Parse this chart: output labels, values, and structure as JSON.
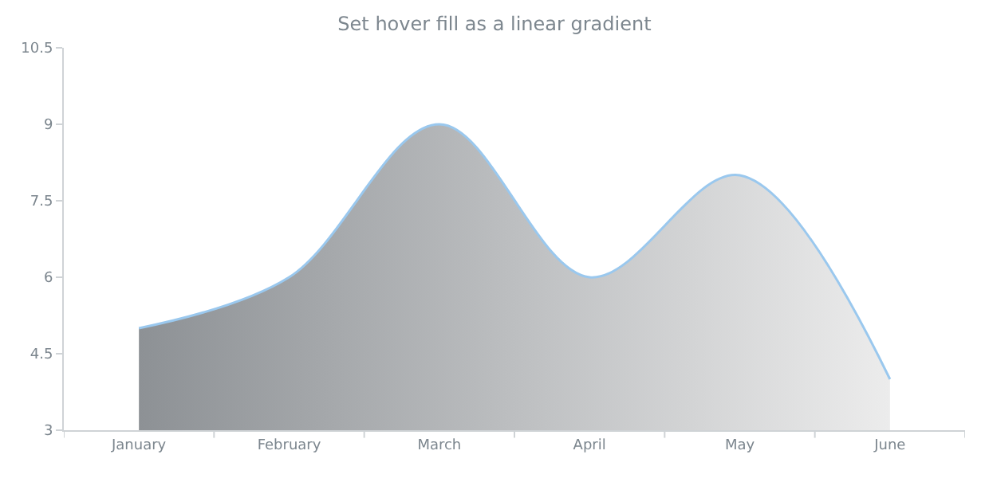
{
  "chart_data": {
    "type": "area",
    "title": "Set hover fill as a linear gradient",
    "categories": [
      "January",
      "February",
      "March",
      "April",
      "May",
      "June"
    ],
    "series": [
      {
        "color": "#9ac8ee",
        "values": [
          5,
          6,
          9,
          6,
          8,
          4
        ]
      }
    ],
    "ylim": [
      3,
      10.5
    ],
    "yticks": [
      3,
      4.5,
      6,
      7.5,
      9,
      10.5
    ]
  }
}
